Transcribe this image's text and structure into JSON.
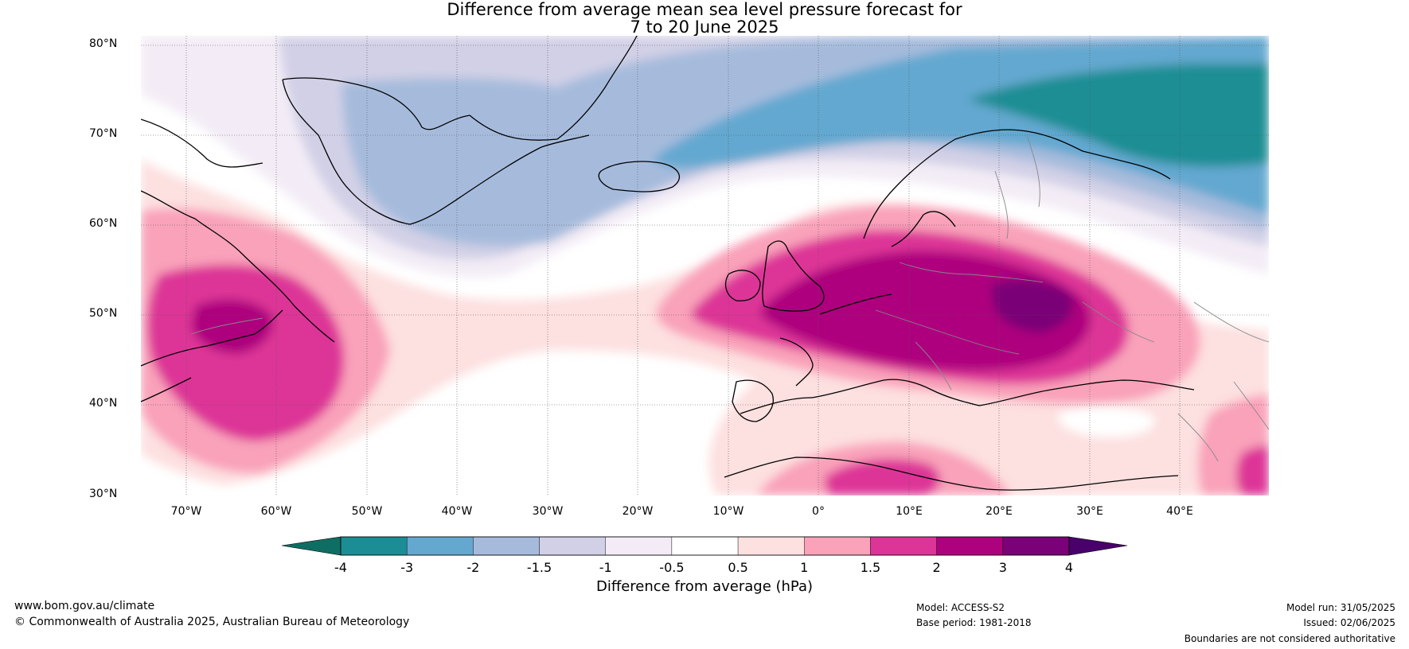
{
  "title_line1": "Difference from average mean sea level pressure forecast for",
  "title_line2": "7 to 20 June 2025",
  "map": {
    "lat_labels": [
      "80°N",
      "70°N",
      "60°N",
      "50°N",
      "40°N",
      "30°N"
    ],
    "lon_labels": [
      "70°W",
      "60°W",
      "50°W",
      "40°W",
      "30°W",
      "20°W",
      "10°W",
      "0°",
      "10°E",
      "20°E",
      "30°E",
      "40°E"
    ],
    "extent": {
      "lon_min": -75,
      "lon_max": 50,
      "lat_min": 30,
      "lat_max": 81
    }
  },
  "colorbar": {
    "ticks": [
      "-4",
      "-3",
      "-2",
      "-1.5",
      "-1",
      "-0.5",
      "0.5",
      "1",
      "1.5",
      "2",
      "3",
      "4"
    ],
    "colors": [
      "#1a8e94",
      "#64a8d0",
      "#a6bbdc",
      "#d1d0e6",
      "#f3ecf6",
      "#ffffff",
      "#fde0e0",
      "#f9a2ba",
      "#dd3497",
      "#ae017e",
      "#7a0177"
    ],
    "under_color": "#0f6e63",
    "over_color": "#49006a",
    "label": "Difference from average (hPa)"
  },
  "footer": {
    "website": "www.bom.gov.au/climate",
    "copyright": "© Commonwealth of Australia 2025, Australian Bureau of Meteorology",
    "model": "Model: ACCESS-S2",
    "base_period": "Base period: 1981-2018",
    "model_run": "Model run: 31/05/2025",
    "issued": "Issued: 02/06/2025",
    "disclaimer": "Boundaries are not considered authoritative"
  }
}
